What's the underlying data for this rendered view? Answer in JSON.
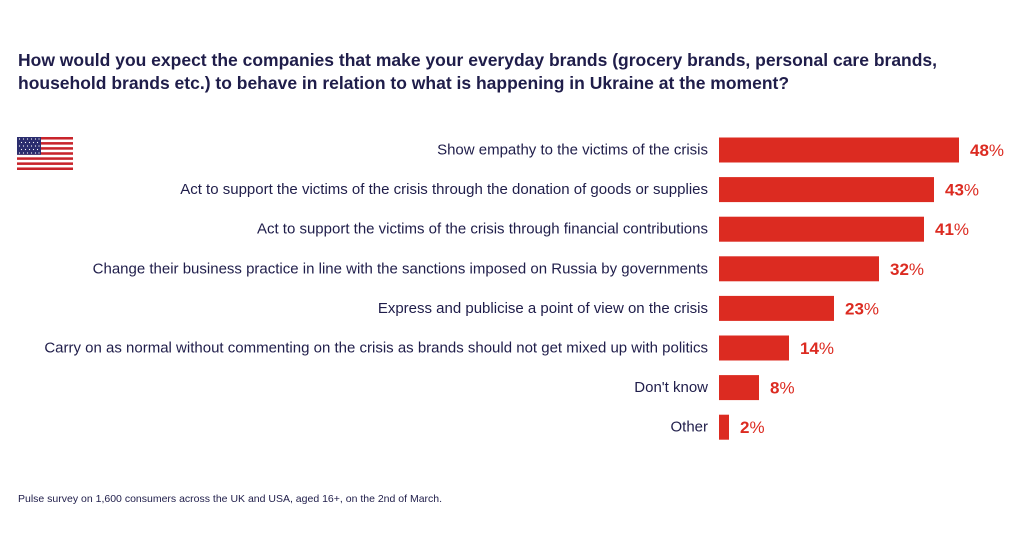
{
  "question": "How would you expect the companies that make your everyday brands (grocery brands, personal care brands, household brands etc.) to behave in relation to what is happening in Ukraine at the moment?",
  "footnote": "Pulse survey on 1,600 consumers across the UK and USA, aged 16+, on the 2nd of March.",
  "flag_icon": "usa-flag-icon",
  "colors": {
    "bar": "#dc2b21",
    "text": "#1f1d4a",
    "value": "#dc2b21"
  },
  "chart_data": {
    "type": "bar",
    "orientation": "horizontal",
    "unit": "%",
    "categories": [
      "Show empathy to the victims of the crisis",
      "Act to support the victims of the crisis through the donation of goods or supplies",
      "Act to support the victims of the crisis through financial contributions",
      "Change their business practice in line with the sanctions imposed on Russia by governments",
      "Express and publicise a point of view on the crisis",
      "Carry on as normal without commenting on the crisis as brands should not get mixed up with politics",
      "Don't know",
      "Other"
    ],
    "values": [
      48,
      43,
      41,
      32,
      23,
      14,
      8,
      2
    ],
    "title": "",
    "xlabel": "",
    "ylabel": "",
    "xlim": [
      0,
      48
    ],
    "grid": false,
    "legend": "none"
  }
}
